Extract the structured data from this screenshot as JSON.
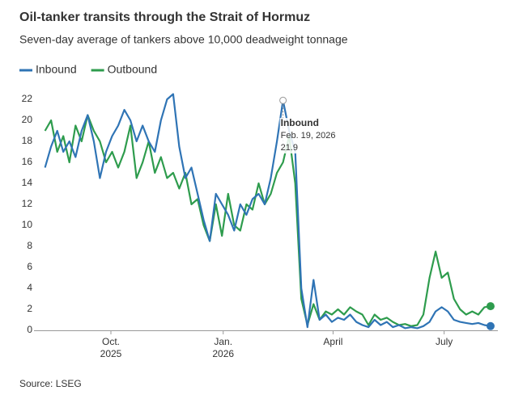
{
  "chart_data": {
    "type": "line",
    "title": "Oil-tanker transits through the Strait of Hormuz",
    "subtitle": "Seven-day average of tankers above 10,000 deadweight tonnage",
    "source": "Source: LSEG",
    "x": [
      "2025-08-08",
      "2025-08-13",
      "2025-08-18",
      "2025-08-23",
      "2025-08-28",
      "2025-09-02",
      "2025-09-07",
      "2025-09-12",
      "2025-09-17",
      "2025-09-22",
      "2025-09-27",
      "2025-10-02",
      "2025-10-07",
      "2025-10-12",
      "2025-10-17",
      "2025-10-22",
      "2025-10-27",
      "2025-11-01",
      "2025-11-06",
      "2025-11-11",
      "2025-11-16",
      "2025-11-21",
      "2025-11-26",
      "2025-12-01",
      "2025-12-06",
      "2025-12-11",
      "2025-12-16",
      "2025-12-21",
      "2025-12-26",
      "2025-12-31",
      "2026-01-05",
      "2026-01-10",
      "2026-01-15",
      "2026-01-20",
      "2026-01-25",
      "2026-01-30",
      "2026-02-04",
      "2026-02-09",
      "2026-02-14",
      "2026-02-19",
      "2026-02-24",
      "2026-03-01",
      "2026-03-06",
      "2026-03-11",
      "2026-03-16",
      "2026-03-21",
      "2026-03-26",
      "2026-03-31",
      "2026-04-05",
      "2026-04-10",
      "2026-04-15",
      "2026-04-20",
      "2026-04-25",
      "2026-04-30",
      "2026-05-05",
      "2026-05-10",
      "2026-05-15",
      "2026-05-20",
      "2026-05-25",
      "2026-05-30",
      "2026-06-04",
      "2026-06-09",
      "2026-06-14",
      "2026-06-19",
      "2026-06-24",
      "2026-06-29",
      "2026-07-04",
      "2026-07-09",
      "2026-07-14",
      "2026-07-19",
      "2026-07-24",
      "2026-07-29",
      "2026-08-03",
      "2026-08-08"
    ],
    "series": [
      {
        "name": "Inbound",
        "color": "#2f74b5",
        "values": [
          15.5,
          17.5,
          19,
          17,
          18,
          16.5,
          19,
          20.5,
          18,
          14.5,
          17,
          18.5,
          19.5,
          21,
          20,
          18,
          19.5,
          18,
          17,
          20,
          22,
          22.5,
          17.5,
          14.5,
          15.5,
          13,
          10.5,
          8.5,
          13,
          12,
          11,
          9.5,
          12,
          11,
          12.5,
          13,
          12,
          14.5,
          18,
          21.9,
          19,
          17,
          4,
          0.3,
          4.8,
          1,
          1.5,
          0.8,
          1.2,
          1,
          1.5,
          0.8,
          0.5,
          0.3,
          1,
          0.5,
          0.8,
          0.3,
          0.5,
          0.2,
          0.3,
          0.2,
          0.4,
          0.8,
          1.8,
          2.2,
          1.8,
          1,
          0.8,
          0.7,
          0.6,
          0.7,
          0.5,
          0.4
        ]
      },
      {
        "name": "Outbound",
        "color": "#2e9c4d",
        "values": [
          19,
          20,
          17,
          18.5,
          16,
          19.5,
          18,
          20.5,
          19,
          18,
          16,
          17,
          15.5,
          17,
          19.5,
          14.5,
          16,
          18,
          15,
          16.5,
          14.5,
          15,
          13.5,
          15,
          12,
          12.5,
          10,
          8.5,
          12,
          9,
          13,
          10,
          9.5,
          12,
          11.5,
          14,
          12,
          13,
          15,
          16,
          18.5,
          14,
          3,
          0.5,
          2.5,
          1,
          1.8,
          1.5,
          2,
          1.5,
          2.2,
          1.8,
          1.5,
          0.5,
          1.5,
          1,
          1.2,
          0.8,
          0.5,
          0.6,
          0.4,
          0.5,
          1.5,
          5,
          7.5,
          5,
          5.5,
          3,
          2,
          1.5,
          1.8,
          1.5,
          2.2,
          2.3
        ]
      }
    ],
    "xlim": [
      "2025-07-30",
      "2026-08-14"
    ],
    "xticks": [
      {
        "value": "2025-10-01",
        "label": "Oct. 2025"
      },
      {
        "value": "2026-01-01",
        "label": "Jan. 2026"
      },
      {
        "value": "2026-04-01",
        "label": "April"
      },
      {
        "value": "2026-07-01",
        "label": "July"
      }
    ],
    "ylim": [
      0,
      23
    ],
    "yticks": [
      0,
      2,
      4,
      6,
      8,
      10,
      12,
      14,
      16,
      18,
      20,
      22
    ],
    "grid": false,
    "legend": "top-left",
    "annotation": {
      "series": "Inbound",
      "date": "Feb. 19, 2026",
      "value_label": "21.9",
      "index": 39
    }
  }
}
